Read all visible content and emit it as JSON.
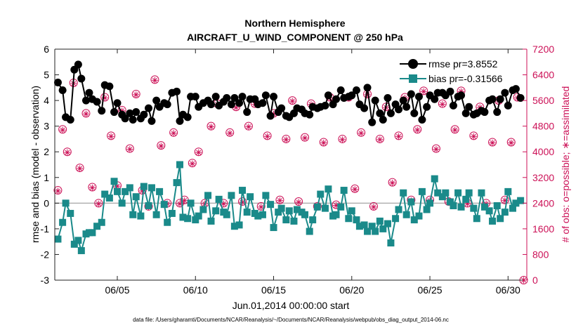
{
  "chart_data": {
    "type": "line",
    "title": "Northern Hemisphere",
    "subtitle": "AIRCRAFT_U_WIND_COMPONENT @ 250 hPa",
    "ylabel_left": "rmse and bias (model - observation)",
    "ylabel_right": "# of obs: o=possible; ∗=assimilated",
    "xlabel": "Jun.01,2014 00:00:00 start",
    "footer": "data file: /Users/gharamti/Documents/NCAR/Reanalysis/~/Documents/NCAR/Reanalysis/webpub/obs_diag_output_2014-06.nc",
    "x_unit": "days since Jun.01,2014 00:00:00",
    "xlim": [
      1,
      31.2
    ],
    "ylim_left": [
      -3,
      6
    ],
    "ylim_right": [
      0,
      7200
    ],
    "x_ticks": [
      5,
      10,
      15,
      20,
      25,
      30
    ],
    "x_tick_labels": [
      "06/05",
      "06/10",
      "06/15",
      "06/20",
      "06/25",
      "06/30"
    ],
    "y_left_ticks": [
      -3,
      -2,
      -1,
      0,
      1,
      2,
      3,
      4,
      5,
      6
    ],
    "y_right_ticks": [
      0,
      800,
      1600,
      2400,
      3200,
      4000,
      4800,
      5600,
      6400,
      7200
    ],
    "legend_position": "top-right",
    "colors": {
      "rmse": "#000000",
      "bias": "#1a8a8a",
      "obs": "#cc1157",
      "zero_line": "#b0b0b0"
    },
    "series": [
      {
        "name": "rmse pr=3.8552",
        "axis": "left",
        "x": [
          1.2,
          1.5,
          1.7,
          2.0,
          2.25,
          2.5,
          2.7,
          3.0,
          3.2,
          3.4,
          3.7,
          4.0,
          4.2,
          4.5,
          4.8,
          5.0,
          5.3,
          5.5,
          5.8,
          6.0,
          6.2,
          6.5,
          6.7,
          7.0,
          7.2,
          7.5,
          7.7,
          8.0,
          8.2,
          8.5,
          8.8,
          9.0,
          9.2,
          9.5,
          9.7,
          10.0,
          10.2,
          10.5,
          10.8,
          11.0,
          11.3,
          11.5,
          11.8,
          12.0,
          12.3,
          12.5,
          12.8,
          13.0,
          13.3,
          13.5,
          13.8,
          14.0,
          14.3,
          14.5,
          14.8,
          15.0,
          15.3,
          15.5,
          15.8,
          16.0,
          16.3,
          16.5,
          16.8,
          17.0,
          17.3,
          17.5,
          17.8,
          18.0,
          18.3,
          18.5,
          18.8,
          19.0,
          19.3,
          19.5,
          19.8,
          20.0,
          20.3,
          20.5,
          20.8,
          21.0,
          21.3,
          21.5,
          21.8,
          22.0,
          22.3,
          22.5,
          22.8,
          23.0,
          23.3,
          23.5,
          23.8,
          24.0,
          24.3,
          24.5,
          24.8,
          25.0,
          25.3,
          25.5,
          25.8,
          26.0,
          26.3,
          26.5,
          26.8,
          27.0,
          27.3,
          27.5,
          27.8,
          28.0,
          28.3,
          28.5,
          28.8,
          29.0,
          29.3,
          29.5,
          29.8,
          30.0,
          30.3,
          30.5,
          30.8
        ],
        "values": [
          4.7,
          4.4,
          3.35,
          3.25,
          5.2,
          5.4,
          4.85,
          4.0,
          4.3,
          4.05,
          3.95,
          3.6,
          4.6,
          4.55,
          3.55,
          3.9,
          3.45,
          3.3,
          3.5,
          3.25,
          3.55,
          3.3,
          3.45,
          3.7,
          3.2,
          4.0,
          3.75,
          3.9,
          3.85,
          4.3,
          4.35,
          3.2,
          3.45,
          3.35,
          4.15,
          4.15,
          3.75,
          3.9,
          4.0,
          3.85,
          4.15,
          3.8,
          3.95,
          4.1,
          3.85,
          4.1,
          3.9,
          4.15,
          3.55,
          4.05,
          4.05,
          3.85,
          3.9,
          4.2,
          3.4,
          4.15,
          3.55,
          3.7,
          3.4,
          3.35,
          3.5,
          3.7,
          3.65,
          3.5,
          3.45,
          3.75,
          3.7,
          3.75,
          3.8,
          4.2,
          3.85,
          4.05,
          4.4,
          4.1,
          4.15,
          4.2,
          4.4,
          3.85,
          3.7,
          4.5,
          3.15,
          4.0,
          3.5,
          3.25,
          4.1,
          3.5,
          3.85,
          3.65,
          4.0,
          3.75,
          4.25,
          3.5,
          4.15,
          3.25,
          3.75,
          4.2,
          4.05,
          4.3,
          4.3,
          4.2,
          4.35,
          3.8,
          4.15,
          4.2,
          3.5,
          3.75,
          3.45,
          3.5,
          3.6,
          3.55,
          4.0,
          4.05,
          3.55,
          4.05,
          4.3,
          3.8,
          4.4,
          4.45,
          4.1
        ],
        "marker": "circle"
      },
      {
        "name": "bias pr=-0.31566",
        "axis": "left",
        "x": [
          1.2,
          1.5,
          1.7,
          2.0,
          2.25,
          2.5,
          2.7,
          3.0,
          3.2,
          3.4,
          3.7,
          4.0,
          4.2,
          4.5,
          4.8,
          5.0,
          5.3,
          5.5,
          5.8,
          6.0,
          6.2,
          6.5,
          6.7,
          7.0,
          7.2,
          7.5,
          7.7,
          8.0,
          8.2,
          8.5,
          8.8,
          9.0,
          9.2,
          9.5,
          9.7,
          10.0,
          10.2,
          10.5,
          10.8,
          11.0,
          11.3,
          11.5,
          11.8,
          12.0,
          12.3,
          12.5,
          12.8,
          13.0,
          13.3,
          13.5,
          13.8,
          14.0,
          14.3,
          14.5,
          14.8,
          15.0,
          15.3,
          15.5,
          15.8,
          16.0,
          16.3,
          16.5,
          16.8,
          17.0,
          17.3,
          17.5,
          17.8,
          18.0,
          18.3,
          18.5,
          18.8,
          19.0,
          19.3,
          19.5,
          19.8,
          20.0,
          20.3,
          20.5,
          20.8,
          21.0,
          21.3,
          21.5,
          21.8,
          22.0,
          22.3,
          22.5,
          22.8,
          23.0,
          23.3,
          23.5,
          23.8,
          24.0,
          24.3,
          24.5,
          24.8,
          25.0,
          25.3,
          25.5,
          25.8,
          26.0,
          26.3,
          26.5,
          26.8,
          27.0,
          27.3,
          27.5,
          27.8,
          28.0,
          28.3,
          28.5,
          28.8,
          29.0,
          29.3,
          29.5,
          29.8,
          30.0,
          30.3,
          30.5,
          30.8
        ],
        "values": [
          -1.4,
          -0.75,
          0.0,
          -0.4,
          -1.6,
          -1.45,
          -1.85,
          -1.2,
          -1.15,
          -1.15,
          -0.9,
          -0.75,
          0.35,
          0.2,
          0.85,
          0.45,
          0.0,
          0.45,
          0.6,
          -0.45,
          0.25,
          -0.5,
          0.65,
          -0.1,
          0.6,
          -0.45,
          0.45,
          -0.05,
          -0.75,
          -0.4,
          0.8,
          1.5,
          -0.55,
          -0.6,
          0.0,
          -0.65,
          -0.5,
          -0.25,
          0.3,
          -0.7,
          -0.3,
          0.15,
          -0.35,
          -0.45,
          0.3,
          -0.9,
          -0.85,
          0.5,
          -0.35,
          0.25,
          -0.4,
          -0.5,
          -0.45,
          0.3,
          -0.05,
          -0.95,
          -0.35,
          -0.2,
          -0.65,
          -0.3,
          -0.7,
          -0.25,
          -0.35,
          -0.45,
          -1.1,
          -0.65,
          -0.15,
          0.35,
          -0.2,
          0.55,
          -0.5,
          -0.45,
          -0.15,
          0.5,
          -0.6,
          -0.3,
          -0.65,
          -0.9,
          -0.85,
          -1.1,
          -0.9,
          -1.1,
          -0.7,
          -1.0,
          -0.8,
          -1.55,
          -0.6,
          -0.25,
          0.4,
          -0.45,
          0.05,
          -0.65,
          -0.5,
          0.45,
          -0.25,
          0.0,
          0.95,
          0.4,
          0.25,
          0.4,
          0.05,
          -0.1,
          0.4,
          -0.15,
          0.15,
          0.4,
          -0.2,
          -0.6,
          0.4,
          -0.15,
          -0.3,
          -0.7,
          -0.1,
          -0.6,
          -0.35,
          0.45,
          -0.2,
          0.0,
          0.1
        ],
        "marker": "square"
      },
      {
        "name": "# of obs possible",
        "axis": "right",
        "x": [
          1.2,
          1.5,
          1.8,
          2.2,
          2.6,
          3.0,
          3.4,
          3.8,
          4.2,
          4.6,
          5.0,
          5.3,
          5.8,
          6.2,
          6.6,
          7.0,
          7.4,
          7.8,
          8.2,
          8.6,
          9.0,
          9.3,
          9.8,
          10.2,
          10.6,
          11.0,
          11.4,
          11.8,
          12.2,
          12.6,
          13.0,
          13.4,
          13.8,
          14.2,
          14.6,
          15.0,
          15.4,
          15.8,
          16.2,
          16.6,
          17.0,
          17.4,
          17.8,
          18.2,
          18.6,
          19.0,
          19.4,
          19.8,
          20.2,
          20.6,
          21.0,
          21.4,
          21.8,
          22.2,
          22.6,
          23.0,
          23.4,
          23.8,
          24.2,
          24.6,
          25.0,
          25.4,
          25.8,
          26.2,
          26.6,
          27.0,
          27.4,
          27.8,
          28.2,
          28.6,
          29.0,
          29.4,
          29.8,
          30.2,
          30.6,
          31.0
        ],
        "values": [
          2800,
          4700,
          4000,
          6150,
          3500,
          5200,
          2900,
          2400,
          5700,
          4500,
          2950,
          5300,
          4100,
          5800,
          2800,
          2300,
          6250,
          4200,
          2400,
          4600,
          2400,
          2500,
          3650,
          4000,
          2400,
          4800,
          5500,
          2400,
          4600,
          5400,
          2450,
          4800,
          5500,
          2300,
          4500,
          5200,
          2500,
          4400,
          5600,
          2450,
          4450,
          5500,
          2300,
          4300,
          5700,
          2350,
          4400,
          5700,
          2850,
          4600,
          5800,
          2300,
          4400,
          5400,
          3050,
          4500,
          5700,
          2500,
          4700,
          5900,
          2500,
          4100,
          5500,
          2450,
          4700,
          5900,
          2400,
          4500,
          5400,
          2400,
          4300,
          5600,
          2500,
          4300,
          5700,
          0
        ],
        "marker": "open-circle"
      },
      {
        "name": "# of obs assimilated",
        "axis": "right",
        "x": [
          1.2,
          1.5,
          1.8,
          2.2,
          2.6,
          3.0,
          3.4,
          3.8,
          4.2,
          4.6,
          5.0,
          5.3,
          5.8,
          6.2,
          6.6,
          7.0,
          7.4,
          7.8,
          8.2,
          8.6,
          9.0,
          9.3,
          9.8,
          10.2,
          10.6,
          11.0,
          11.4,
          11.8,
          12.2,
          12.6,
          13.0,
          13.4,
          13.8,
          14.2,
          14.6,
          15.0,
          15.4,
          15.8,
          16.2,
          16.6,
          17.0,
          17.4,
          17.8,
          18.2,
          18.6,
          19.0,
          19.4,
          19.8,
          20.2,
          20.6,
          21.0,
          21.4,
          21.8,
          22.2,
          22.6,
          23.0,
          23.4,
          23.8,
          24.2,
          24.6,
          25.0,
          25.4,
          25.8,
          26.2,
          26.6,
          27.0,
          27.4,
          27.8,
          28.2,
          28.6,
          29.0,
          29.4,
          29.8,
          30.2,
          30.6,
          31.0
        ],
        "values": [
          2780,
          4680,
          3980,
          6130,
          3480,
          5180,
          2880,
          2380,
          5680,
          4480,
          2930,
          5280,
          4080,
          5780,
          2780,
          2280,
          6230,
          4180,
          2380,
          4580,
          2380,
          2480,
          3630,
          3980,
          2380,
          4780,
          5480,
          2380,
          4580,
          5380,
          2430,
          4780,
          5480,
          2280,
          4480,
          5180,
          2480,
          4380,
          5580,
          2430,
          4430,
          5480,
          2280,
          4280,
          5680,
          2330,
          4380,
          5680,
          2830,
          4580,
          5780,
          2280,
          4380,
          5380,
          3030,
          4480,
          5680,
          2480,
          4680,
          5880,
          2480,
          4080,
          5480,
          2430,
          4680,
          5880,
          2380,
          4480,
          5380,
          2380,
          4280,
          5580,
          2480,
          4280,
          5680,
          0
        ],
        "marker": "asterisk"
      }
    ]
  }
}
